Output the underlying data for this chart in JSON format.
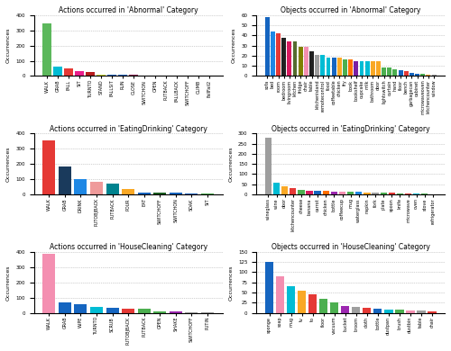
{
  "abnormal_actions": {
    "labels": [
      "WALK",
      "GRAB",
      "FALL",
      "SIT",
      "TURNTO",
      "STAND",
      "FALLSIT",
      "RUN",
      "CLOSE",
      "SWITCHON",
      "OPEN",
      "PUTBACK",
      "FALLBACK",
      "SWITCHOFF",
      "CLIMB",
      "FallFail2"
    ],
    "values": [
      345,
      62,
      50,
      30,
      27,
      10,
      8,
      8,
      7,
      5,
      5,
      4,
      4,
      3,
      3,
      2
    ],
    "colors": [
      "#5cb85c",
      "#00bcd4",
      "#e53935",
      "#e91e8c",
      "#b71c1c",
      "#cddc39",
      "#1565c0",
      "#1565c0",
      "#880e4f",
      "#ef9a9a",
      "#9e9e9e",
      "#9e9e9e",
      "#4caf50",
      "#4caf50",
      "#4caf50",
      "#4caf50"
    ],
    "title": "Actions occurred in 'Abnormal' Category",
    "ylim": [
      0,
      400
    ]
  },
  "abnormal_objects": {
    "labels": [
      "sofa",
      "bed",
      "room",
      "bedroom",
      "livingroom",
      "kitchen",
      "fridge",
      "chair",
      "table",
      "kitchenisland",
      "remotecontrol",
      "food",
      "coffeetable",
      "chicken",
      "fry",
      "book",
      "bookshelf",
      "cupcake",
      "milk",
      "bathroom",
      "door",
      "lightswitch",
      "curtain",
      "hand",
      "floor",
      "bench",
      "garbagecan",
      "cabinet",
      "microwaveoven",
      "kitchencounter",
      "window"
    ],
    "values": [
      58,
      44,
      42,
      38,
      34,
      34,
      29,
      29,
      24,
      21,
      21,
      18,
      18,
      18,
      16,
      16,
      15,
      15,
      15,
      15,
      15,
      8,
      8,
      7,
      6,
      5,
      3,
      2,
      2,
      1,
      1
    ],
    "colors": [
      "#1565c0",
      "#1e88e5",
      "#e53935",
      "#212121",
      "#d81b60",
      "#556b2f",
      "#808000",
      "#f48fb1",
      "#212121",
      "#9e9e9e",
      "#00bcd4",
      "#00bcd4",
      "#1565c0",
      "#f9a825",
      "#4caf50",
      "#ff6f00",
      "#7b1fa2",
      "#00bcd4",
      "#00bcd4",
      "#f9a825",
      "#f9a825",
      "#4caf50",
      "#4caf50",
      "#4caf50",
      "#1565c0",
      "#e53935",
      "#1565c0",
      "#1565c0",
      "#4caf50",
      "#f9a825",
      "#9e9e9e"
    ],
    "title": "Objects occurred in 'Abnormal' Category",
    "ylim": [
      0,
      60
    ]
  },
  "eatingdrinking_actions": {
    "labels": [
      "WALK",
      "GRAB",
      "DRINK",
      "PUTOBJBACK",
      "PUTBACK",
      "POUR",
      "EAT",
      "SWITCHOFF",
      "SWITCHON",
      "SOAK",
      "SIT"
    ],
    "values": [
      355,
      185,
      100,
      85,
      70,
      35,
      15,
      12,
      10,
      8,
      6
    ],
    "colors": [
      "#e53935",
      "#1a3a5c",
      "#1e88e5",
      "#ef9a9a",
      "#00838f",
      "#f9a825",
      "#1565c0",
      "#1b5e20",
      "#1565c0",
      "#1565c0",
      "#4caf50"
    ],
    "title": "Actions occurred in 'EatingDrinking' Category",
    "ylim": [
      0,
      400
    ]
  },
  "eatingdrinking_objects": {
    "labels": [
      "wineglass",
      "wine",
      "door",
      "kitchencounter",
      "cheese",
      "banana",
      "carrot",
      "chicken",
      "bottle",
      "coffeecup",
      "mug",
      "waterglass",
      "napkin",
      "fork",
      "plate",
      "spoon",
      "knife",
      "microwave",
      "oven",
      "stove",
      "refrigerator"
    ],
    "values": [
      280,
      60,
      40,
      30,
      22,
      20,
      18,
      16,
      15,
      14,
      13,
      12,
      10,
      9,
      8,
      7,
      6,
      5,
      4,
      3,
      2
    ],
    "colors": [
      "#9e9e9e",
      "#00bcd4",
      "#f9a825",
      "#e53935",
      "#4caf50",
      "#d81b60",
      "#1565c0",
      "#ff6f00",
      "#9c27b0",
      "#f48fb1",
      "#4caf50",
      "#1e88e5",
      "#f9a825",
      "#9e9e9e",
      "#4caf50",
      "#e53935",
      "#4caf50",
      "#e53935",
      "#00bcd4",
      "#4caf50",
      "#4caf50"
    ],
    "title": "Objects occurred in 'EatingDrinking' Category",
    "ylim": [
      0,
      300
    ]
  },
  "housecleaning_actions": {
    "labels": [
      "WALK",
      "GRAB",
      "WIPE",
      "TURNTO",
      "SCRUB",
      "PUTOBJBACK",
      "PUTBACK",
      "OPEN",
      "SHAKE",
      "SWITCHOFF",
      "PUTIN"
    ],
    "values": [
      390,
      70,
      55,
      40,
      35,
      30,
      25,
      12,
      8,
      5,
      3
    ],
    "colors": [
      "#f48fb1",
      "#1565c0",
      "#1565c0",
      "#00bcd4",
      "#1565c0",
      "#e53935",
      "#4caf50",
      "#4caf50",
      "#9c27b0",
      "#9e9e9e",
      "#9e9e9e"
    ],
    "title": "Actions occurred in 'HouseCleaning' Category",
    "ylim": [
      0,
      400
    ]
  },
  "housecleaning_objects": {
    "labels": [
      "sponge",
      "soap",
      "mug",
      "tv",
      "to",
      "floor",
      "vacuum",
      "bucket",
      "broom",
      "cloth",
      "bottle",
      "dustpan",
      "brush",
      "dustbin",
      "table",
      "chair"
    ],
    "values": [
      125,
      90,
      65,
      55,
      45,
      35,
      25,
      18,
      15,
      12,
      10,
      8,
      7,
      6,
      5,
      4
    ],
    "colors": [
      "#1565c0",
      "#f48fb1",
      "#00bcd4",
      "#f9a825",
      "#e53935",
      "#4caf50",
      "#4caf50",
      "#9c27b0",
      "#9e9e9e",
      "#e53935",
      "#1565c0",
      "#00bcd4",
      "#4caf50",
      "#f48fb1",
      "#9e9e9e",
      "#e53935"
    ],
    "title": "Objects occurred in 'HouseCleaning' Category",
    "ylim": [
      0,
      150
    ]
  }
}
